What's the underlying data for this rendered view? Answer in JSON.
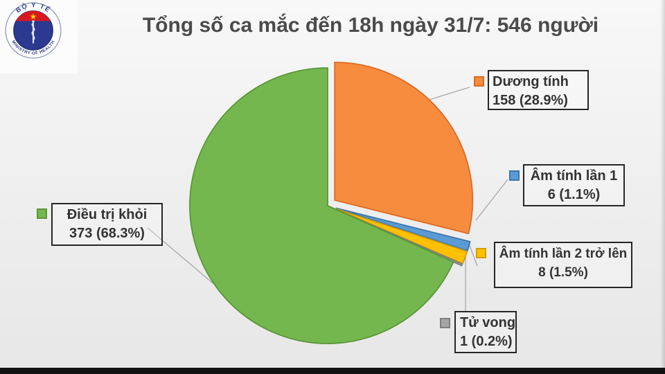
{
  "header": {
    "title": "Tổng số ca mắc đến 18h ngày 31/7: 546 người"
  },
  "logo": {
    "top_text": "BỘ Y TẾ",
    "bottom_text": "MINISTRY OF HEALTH"
  },
  "chart_data": {
    "type": "pie",
    "title": "Tổng số ca mắc đến 18h ngày 31/7: 546 người",
    "total": 546,
    "start_angle": 0,
    "direction": "clockwise",
    "legend_position": "callout-boxes-around-pie",
    "slices": [
      {
        "id": "duong-tinh",
        "label": "Dương tính",
        "value": 158,
        "pct": 28.9,
        "display": "158 (28.9%)",
        "color": "#F78C3E",
        "border": "#DE6A22",
        "explode": 13
      },
      {
        "id": "am-tinh-lan-1",
        "label": "Âm tính lần 1",
        "value": 6,
        "pct": 1.1,
        "display": "6 (1.1%)",
        "color": "#5B9BD5",
        "border": "#3A76AC",
        "explode": 13
      },
      {
        "id": "am-tinh-lan-2",
        "label": "Âm tính lần 2 trở lên",
        "value": 8,
        "pct": 1.5,
        "display": "8 (1.5%)",
        "color": "#FFC000",
        "border": "#D49E00",
        "explode": 13
      },
      {
        "id": "tu-vong",
        "label": "Tử vong",
        "value": 1,
        "pct": 0.2,
        "display": "1 (0.2%)",
        "color": "#A5A5A5",
        "border": "#7F7F7F",
        "explode": 13
      },
      {
        "id": "dieu-tri-khoi",
        "label": "Điều trị khỏi",
        "value": 373,
        "pct": 68.3,
        "display": "373 (68.3%)",
        "color": "#74B74F",
        "border": "#5B9638",
        "explode": 0
      }
    ]
  }
}
